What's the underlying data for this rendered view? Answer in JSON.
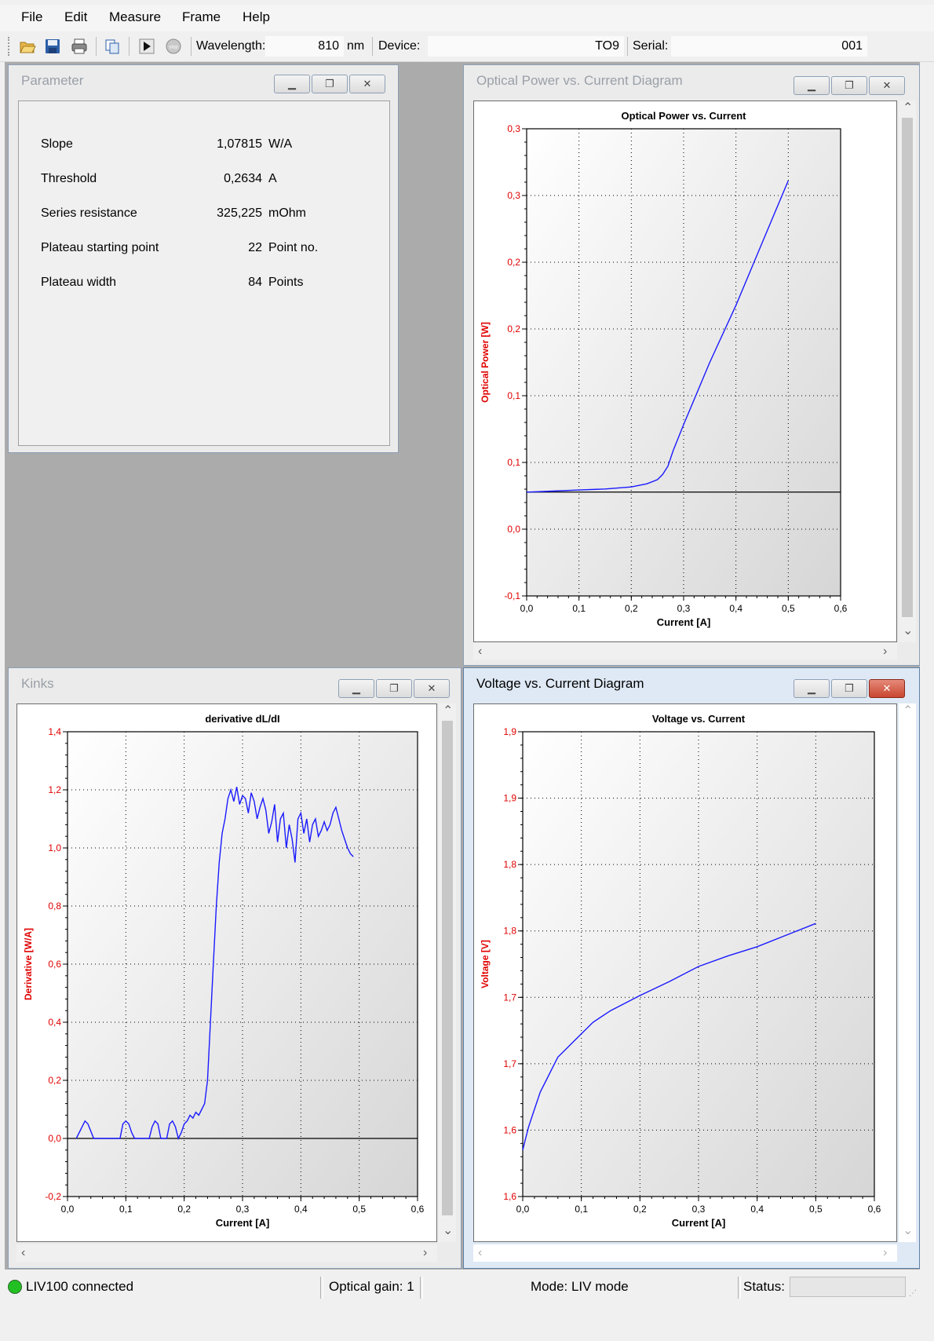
{
  "menu": [
    "File",
    "Edit",
    "Measure",
    "Frame",
    "Help"
  ],
  "toolbar": {
    "icons": [
      "open-folder-icon",
      "save-icon",
      "print-icon",
      "copy-icon",
      "play-icon",
      "stop-icon"
    ],
    "stop_label": "stop",
    "wavelength_label": "Wavelength:",
    "wavelength_value": "810",
    "wavelength_unit": "nm",
    "device_label": "Device:",
    "device_value": "TO9",
    "serial_label": "Serial:",
    "serial_value": "001"
  },
  "windows": {
    "parameter": {
      "title": "Parameter",
      "rows": [
        {
          "label": "Slope",
          "value": "1,07815",
          "unit": "W/A"
        },
        {
          "label": "Threshold",
          "value": "0,2634",
          "unit": "A"
        },
        {
          "label": "Series resistance",
          "value": "325,225",
          "unit": "mOhm"
        },
        {
          "label": "Plateau starting point",
          "value": "22",
          "unit": "Point no."
        },
        {
          "label": "Plateau width",
          "value": "84",
          "unit": "Points"
        }
      ]
    },
    "optical": {
      "title": "Optical Power vs. Current Diagram"
    },
    "kinks": {
      "title": "Kinks"
    },
    "voltage": {
      "title": "Voltage vs. Current Diagram"
    }
  },
  "chart_data": [
    {
      "type": "line",
      "title": "Optical Power vs. Current",
      "xlabel": "Current [A]",
      "ylabel": "Optical Power [W]",
      "xlim": [
        0,
        0.6
      ],
      "ylim": [
        -0.1,
        0.35
      ],
      "x_ticks": [
        "0,0",
        "0,1",
        "0,2",
        "0,3",
        "0,4",
        "0,5",
        "0,6"
      ],
      "y_ticks": [
        "-0,1",
        "0,0",
        "0,1",
        "0,1",
        "0,2",
        "0,2",
        "0,3",
        "0,3"
      ],
      "grid": true,
      "series": [
        {
          "color": "#1a1aff",
          "x": [
            0,
            0.05,
            0.1,
            0.15,
            0.2,
            0.23,
            0.25,
            0.26,
            0.27,
            0.28,
            0.3,
            0.35,
            0.4,
            0.45,
            0.5
          ],
          "y": [
            0.0,
            0.001,
            0.002,
            0.003,
            0.005,
            0.008,
            0.012,
            0.017,
            0.025,
            0.04,
            0.065,
            0.125,
            0.18,
            0.24,
            0.3
          ]
        }
      ]
    },
    {
      "type": "line",
      "title": "derivative  dL/dI",
      "xlabel": "Current [A]",
      "ylabel": "Derivative [W/A]",
      "xlim": [
        0,
        0.6
      ],
      "ylim": [
        -0.2,
        1.4
      ],
      "x_ticks": [
        "0,0",
        "0,1",
        "0,2",
        "0,3",
        "0,4",
        "0,5",
        "0,6"
      ],
      "y_ticks": [
        "-0,2",
        "0,0",
        "0,2",
        "0,4",
        "0,6",
        "0,8",
        "1,0",
        "1,2",
        "1,4"
      ],
      "grid": true,
      "series": [
        {
          "color": "#1a1aff",
          "x": [
            0.015,
            0.025,
            0.03,
            0.035,
            0.045,
            0.09,
            0.095,
            0.1,
            0.105,
            0.11,
            0.115,
            0.14,
            0.145,
            0.15,
            0.155,
            0.16,
            0.17,
            0.175,
            0.18,
            0.185,
            0.19,
            0.195,
            0.2,
            0.205,
            0.21,
            0.215,
            0.22,
            0.225,
            0.23,
            0.235,
            0.24,
            0.245,
            0.25,
            0.255,
            0.26,
            0.265,
            0.27,
            0.275,
            0.28,
            0.285,
            0.29,
            0.295,
            0.3,
            0.305,
            0.31,
            0.315,
            0.32,
            0.325,
            0.33,
            0.335,
            0.34,
            0.345,
            0.35,
            0.355,
            0.36,
            0.365,
            0.37,
            0.375,
            0.38,
            0.385,
            0.39,
            0.395,
            0.4,
            0.405,
            0.41,
            0.415,
            0.42,
            0.425,
            0.43,
            0.435,
            0.44,
            0.445,
            0.45,
            0.455,
            0.46,
            0.465,
            0.47,
            0.475,
            0.48,
            0.485,
            0.49
          ],
          "y": [
            0,
            0.04,
            0.06,
            0.05,
            0,
            0,
            0.05,
            0.06,
            0.05,
            0.02,
            0,
            0,
            0.04,
            0.06,
            0.05,
            0,
            0,
            0.05,
            0.06,
            0.04,
            0,
            0.02,
            0.05,
            0.06,
            0.08,
            0.07,
            0.09,
            0.08,
            0.1,
            0.12,
            0.2,
            0.4,
            0.6,
            0.8,
            0.95,
            1.05,
            1.1,
            1.17,
            1.2,
            1.16,
            1.21,
            1.15,
            1.18,
            1.17,
            1.12,
            1.19,
            1.16,
            1.1,
            1.14,
            1.17,
            1.13,
            1.05,
            1.09,
            1.15,
            1.02,
            1.1,
            1.12,
            1.0,
            1.08,
            1.03,
            0.95,
            1.1,
            1.12,
            1.05,
            1.1,
            1.02,
            1.08,
            1.1,
            1.04,
            1.06,
            1.09,
            1.06,
            1.08,
            1.12,
            1.14,
            1.1,
            1.06,
            1.03,
            1.0,
            0.98,
            0.97
          ]
        }
      ]
    },
    {
      "type": "line",
      "title": "Voltage vs. Current",
      "xlabel": "Current [A]",
      "ylabel": "Voltage [V]",
      "xlim": [
        0,
        0.6
      ],
      "ylim": [
        1.55,
        1.95
      ],
      "x_ticks": [
        "0,0",
        "0,1",
        "0,2",
        "0,3",
        "0,4",
        "0,5",
        "0,6"
      ],
      "y_ticks": [
        "1,6",
        "1,6",
        "1,7",
        "1,7",
        "1,8",
        "1,8",
        "1,9",
        "1,9"
      ],
      "grid": true,
      "series": [
        {
          "color": "#1a1aff",
          "x": [
            0,
            0.005,
            0.01,
            0.02,
            0.03,
            0.04,
            0.05,
            0.06,
            0.07,
            0.08,
            0.1,
            0.12,
            0.15,
            0.2,
            0.25,
            0.3,
            0.35,
            0.4,
            0.45,
            0.5
          ],
          "y": [
            1.59,
            1.6,
            1.61,
            1.625,
            1.64,
            1.65,
            1.66,
            1.67,
            1.675,
            1.68,
            1.69,
            1.7,
            1.71,
            1.723,
            1.735,
            1.748,
            1.757,
            1.765,
            1.775,
            1.785
          ]
        }
      ]
    }
  ],
  "status": {
    "connection": "LIV100 connected",
    "gain": "Optical gain: 1",
    "mode": "Mode: LIV mode",
    "status_label": "Status:",
    "led_color": "#22c022"
  }
}
